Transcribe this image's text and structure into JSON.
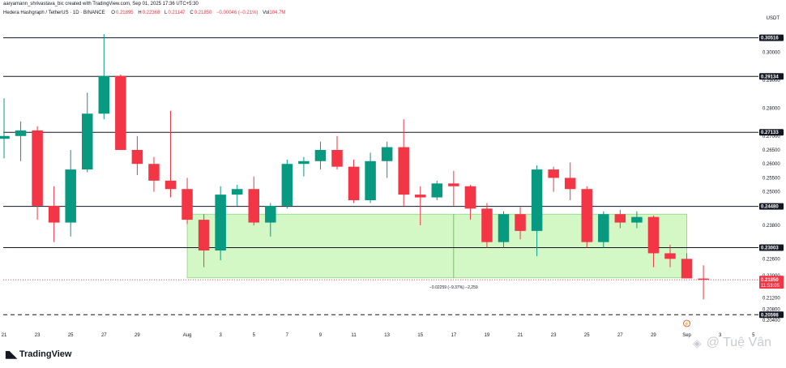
{
  "header": {
    "creator": "aaryamann_shrivastava_bic created with TradingView.com, Sep 01, 2025 17:36 UTC+5:30",
    "symbol": "Hedera Hashgraph / TetherUS · 1D · BINANCE",
    "open_label": "O",
    "open": "0.21895",
    "high_label": "H",
    "high": "0.22368",
    "low_label": "L",
    "low": "0.21147",
    "close_label": "C",
    "close": "0.21850",
    "change": "−0.00046 (−0.21%)",
    "vol_label": "Vol",
    "vol": "104.7M"
  },
  "currency": "USDT",
  "colors": {
    "up": "#089981",
    "down": "#f23645",
    "zone": "#d3f8c6",
    "zone_border": "#8fd47b",
    "last_price": "#f23645"
  },
  "chart_data": {
    "type": "candlestick",
    "ylim": [
      0.202,
      0.31
    ],
    "y_ticks": [
      "0.30000",
      "0.29000",
      "0.28000",
      "0.27000",
      "0.26500",
      "0.26000",
      "0.25500",
      "0.25000",
      "0.24500",
      "0.23800",
      "0.23000",
      "0.22600",
      "0.22000",
      "0.21200",
      "0.20800",
      "0.20400"
    ],
    "x_ticks": [
      {
        "i": 0,
        "label": "21"
      },
      {
        "i": 2,
        "label": "23"
      },
      {
        "i": 4,
        "label": "25"
      },
      {
        "i": 6,
        "label": "27"
      },
      {
        "i": 8,
        "label": "29"
      },
      {
        "i": 11,
        "label": "Aug"
      },
      {
        "i": 13,
        "label": "3"
      },
      {
        "i": 15,
        "label": "5"
      },
      {
        "i": 17,
        "label": "7"
      },
      {
        "i": 19,
        "label": "9"
      },
      {
        "i": 21,
        "label": "11"
      },
      {
        "i": 23,
        "label": "13"
      },
      {
        "i": 25,
        "label": "15"
      },
      {
        "i": 27,
        "label": "17"
      },
      {
        "i": 29,
        "label": "19"
      },
      {
        "i": 31,
        "label": "21"
      },
      {
        "i": 33,
        "label": "23"
      },
      {
        "i": 35,
        "label": "25"
      },
      {
        "i": 37,
        "label": "27"
      },
      {
        "i": 39,
        "label": "29"
      },
      {
        "i": 41,
        "label": "Sep"
      },
      {
        "i": 43,
        "label": "3"
      },
      {
        "i": 45,
        "label": "5"
      }
    ],
    "candles": [
      {
        "o": 0.269,
        "h": 0.2835,
        "l": 0.262,
        "c": 0.27
      },
      {
        "o": 0.27,
        "h": 0.2752,
        "l": 0.261,
        "c": 0.272
      },
      {
        "o": 0.272,
        "h": 0.2735,
        "l": 0.24,
        "c": 0.245
      },
      {
        "o": 0.245,
        "h": 0.252,
        "l": 0.232,
        "c": 0.239
      },
      {
        "o": 0.239,
        "h": 0.265,
        "l": 0.234,
        "c": 0.258
      },
      {
        "o": 0.258,
        "h": 0.2855,
        "l": 0.257,
        "c": 0.278
      },
      {
        "o": 0.278,
        "h": 0.3065,
        "l": 0.276,
        "c": 0.2915
      },
      {
        "o": 0.2915,
        "h": 0.292,
        "l": 0.266,
        "c": 0.265
      },
      {
        "o": 0.265,
        "h": 0.27,
        "l": 0.256,
        "c": 0.26
      },
      {
        "o": 0.26,
        "h": 0.2625,
        "l": 0.25,
        "c": 0.254
      },
      {
        "o": 0.254,
        "h": 0.279,
        "l": 0.248,
        "c": 0.251
      },
      {
        "o": 0.251,
        "h": 0.255,
        "l": 0.2385,
        "c": 0.24
      },
      {
        "o": 0.24,
        "h": 0.242,
        "l": 0.223,
        "c": 0.229
      },
      {
        "o": 0.229,
        "h": 0.252,
        "l": 0.2255,
        "c": 0.249
      },
      {
        "o": 0.249,
        "h": 0.2525,
        "l": 0.245,
        "c": 0.251
      },
      {
        "o": 0.251,
        "h": 0.2555,
        "l": 0.238,
        "c": 0.239
      },
      {
        "o": 0.239,
        "h": 0.246,
        "l": 0.234,
        "c": 0.245
      },
      {
        "o": 0.245,
        "h": 0.2615,
        "l": 0.244,
        "c": 0.26
      },
      {
        "o": 0.26,
        "h": 0.2625,
        "l": 0.2555,
        "c": 0.261
      },
      {
        "o": 0.261,
        "h": 0.268,
        "l": 0.258,
        "c": 0.265
      },
      {
        "o": 0.265,
        "h": 0.27,
        "l": 0.258,
        "c": 0.259
      },
      {
        "o": 0.259,
        "h": 0.2615,
        "l": 0.246,
        "c": 0.247
      },
      {
        "o": 0.247,
        "h": 0.264,
        "l": 0.246,
        "c": 0.261
      },
      {
        "o": 0.261,
        "h": 0.268,
        "l": 0.255,
        "c": 0.266
      },
      {
        "o": 0.266,
        "h": 0.276,
        "l": 0.245,
        "c": 0.249
      },
      {
        "o": 0.249,
        "h": 0.252,
        "l": 0.238,
        "c": 0.248
      },
      {
        "o": 0.248,
        "h": 0.254,
        "l": 0.247,
        "c": 0.253
      },
      {
        "o": 0.253,
        "h": 0.2575,
        "l": 0.245,
        "c": 0.252
      },
      {
        "o": 0.252,
        "h": 0.2525,
        "l": 0.24,
        "c": 0.244
      },
      {
        "o": 0.244,
        "h": 0.246,
        "l": 0.23,
        "c": 0.232
      },
      {
        "o": 0.232,
        "h": 0.243,
        "l": 0.23,
        "c": 0.242
      },
      {
        "o": 0.242,
        "h": 0.2445,
        "l": 0.233,
        "c": 0.236
      },
      {
        "o": 0.236,
        "h": 0.2595,
        "l": 0.227,
        "c": 0.258
      },
      {
        "o": 0.258,
        "h": 0.259,
        "l": 0.25,
        "c": 0.255
      },
      {
        "o": 0.255,
        "h": 0.2605,
        "l": 0.247,
        "c": 0.251
      },
      {
        "o": 0.251,
        "h": 0.252,
        "l": 0.23,
        "c": 0.232
      },
      {
        "o": 0.232,
        "h": 0.243,
        "l": 0.23,
        "c": 0.242
      },
      {
        "o": 0.242,
        "h": 0.2435,
        "l": 0.237,
        "c": 0.239
      },
      {
        "o": 0.239,
        "h": 0.243,
        "l": 0.237,
        "c": 0.241
      },
      {
        "o": 0.241,
        "h": 0.2415,
        "l": 0.223,
        "c": 0.228
      },
      {
        "o": 0.228,
        "h": 0.231,
        "l": 0.223,
        "c": 0.226
      },
      {
        "o": 0.226,
        "h": 0.228,
        "l": 0.219,
        "c": 0.219
      },
      {
        "o": 0.21895,
        "h": 0.22368,
        "l": 0.21147,
        "c": 0.2185
      }
    ],
    "horizontal_levels": [
      {
        "price": 0.30516,
        "label": "0.30516"
      },
      {
        "price": 0.29134,
        "label": "0.29134"
      },
      {
        "price": 0.27133,
        "label": "0.27133"
      },
      {
        "price": 0.2448,
        "label": "0.24480"
      },
      {
        "price": 0.23003,
        "label": "0.23003"
      }
    ],
    "dashed_level": {
      "price": 0.20598,
      "label": "0.20598"
    },
    "last_price": {
      "price": 0.2185,
      "label": "0.21850",
      "countdown": "11:53:05"
    },
    "zone": {
      "top": 0.242,
      "bottom": 0.2192,
      "start": 11,
      "end": 41
    },
    "measure": {
      "x": 27,
      "top": 0.242,
      "bottom": 0.2192,
      "label": "−0.02259 (−9.37%) −2,259"
    },
    "event_marker_index": 41
  },
  "footer": {
    "brand": "TradingView",
    "watermark": "@ Tuệ Vân"
  }
}
